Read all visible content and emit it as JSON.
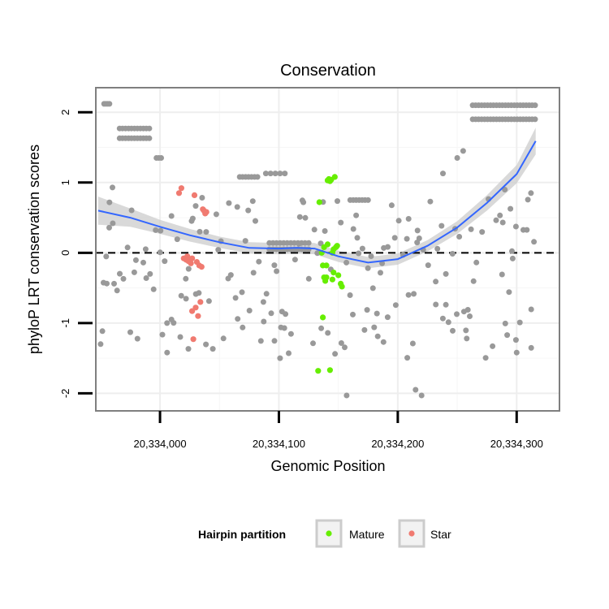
{
  "chart_data": {
    "type": "scatter",
    "title": "Conservation",
    "xlabel": "Genomic Position",
    "ylabel": "phyloP LRT conservation scores",
    "xlim": [
      20333946,
      20334336
    ],
    "ylim": [
      -2.25,
      2.35
    ],
    "x_ticks": [
      20334000,
      20334100,
      20334200,
      20334300
    ],
    "x_tick_labels": [
      "20,334,000",
      "20,334,100",
      "20,334,200",
      "20,334,300"
    ],
    "y_ticks": [
      -2,
      -1,
      0,
      1,
      2
    ],
    "y_tick_labels": [
      "-2",
      "-1",
      "0",
      "1",
      "2"
    ],
    "reference_line": {
      "y": 0,
      "style": "dashed"
    },
    "legend": {
      "title": "Hairpin partition",
      "position": "bottom",
      "entries": [
        {
          "label": "Mature",
          "color": "#66ee00"
        },
        {
          "label": "Star",
          "color": "#f07a70"
        }
      ]
    },
    "colors": {
      "other": "#999999",
      "mature": "#66ee00",
      "star": "#f07a70",
      "smooth": "#3366ff",
      "ribbon": "#cccccc"
    },
    "smooth": {
      "x": [
        20333948,
        20333975,
        20334000,
        20334025,
        20334050,
        20334075,
        20334100,
        20334115,
        20334130,
        20334150,
        20334175,
        20334200,
        20334225,
        20334250,
        20334275,
        20334300,
        20334316
      ],
      "y": [
        0.6,
        0.5,
        0.37,
        0.25,
        0.15,
        0.07,
        0.06,
        0.07,
        0.06,
        -0.05,
        -0.14,
        -0.09,
        0.1,
        0.36,
        0.71,
        1.12,
        1.59
      ],
      "se": [
        0.2,
        0.13,
        0.1,
        0.09,
        0.08,
        0.08,
        0.08,
        0.08,
        0.08,
        0.08,
        0.08,
        0.08,
        0.08,
        0.09,
        0.11,
        0.13,
        0.19
      ]
    },
    "series": [
      {
        "name": "Mature",
        "x": [
          20334134,
          20334136,
          20334137,
          20334138,
          20334139,
          20334140,
          20334141,
          20334142,
          20334143,
          20334144,
          20334145,
          20334146,
          20334147,
          20334148,
          20334149,
          20334150,
          20334152,
          20334153,
          20334133,
          20334137,
          20334140,
          20334143,
          20334145,
          20334138,
          20334141,
          20334146
        ],
        "y": [
          0.72,
          0.0,
          -0.18,
          -0.35,
          -0.4,
          -0.18,
          1.03,
          1.05,
          1.02,
          1.04,
          0.0,
          0.05,
          1.08,
          0.08,
          0.1,
          -0.32,
          -0.44,
          -0.48,
          -1.68,
          -0.92,
          -0.35,
          -1.67,
          -0.38,
          0.08,
          0.12,
          -0.28
        ]
      },
      {
        "name": "Star",
        "x": [
          20334016,
          20334018,
          20334020,
          20334022,
          20334024,
          20334025,
          20334026,
          20334027,
          20334029,
          20334031,
          20334033,
          20334035,
          20334037,
          20334038,
          20334039,
          20334027,
          20334030,
          20334032,
          20334034,
          20334028,
          20334036,
          20334023
        ],
        "y": [
          0.85,
          0.92,
          -0.08,
          -0.1,
          -0.12,
          -0.1,
          -0.15,
          -0.08,
          0.82,
          -0.13,
          -0.18,
          -0.2,
          0.6,
          0.56,
          0.58,
          -0.83,
          -0.78,
          -0.9,
          -0.7,
          -1.23,
          0.62,
          -0.05
        ]
      }
    ]
  }
}
